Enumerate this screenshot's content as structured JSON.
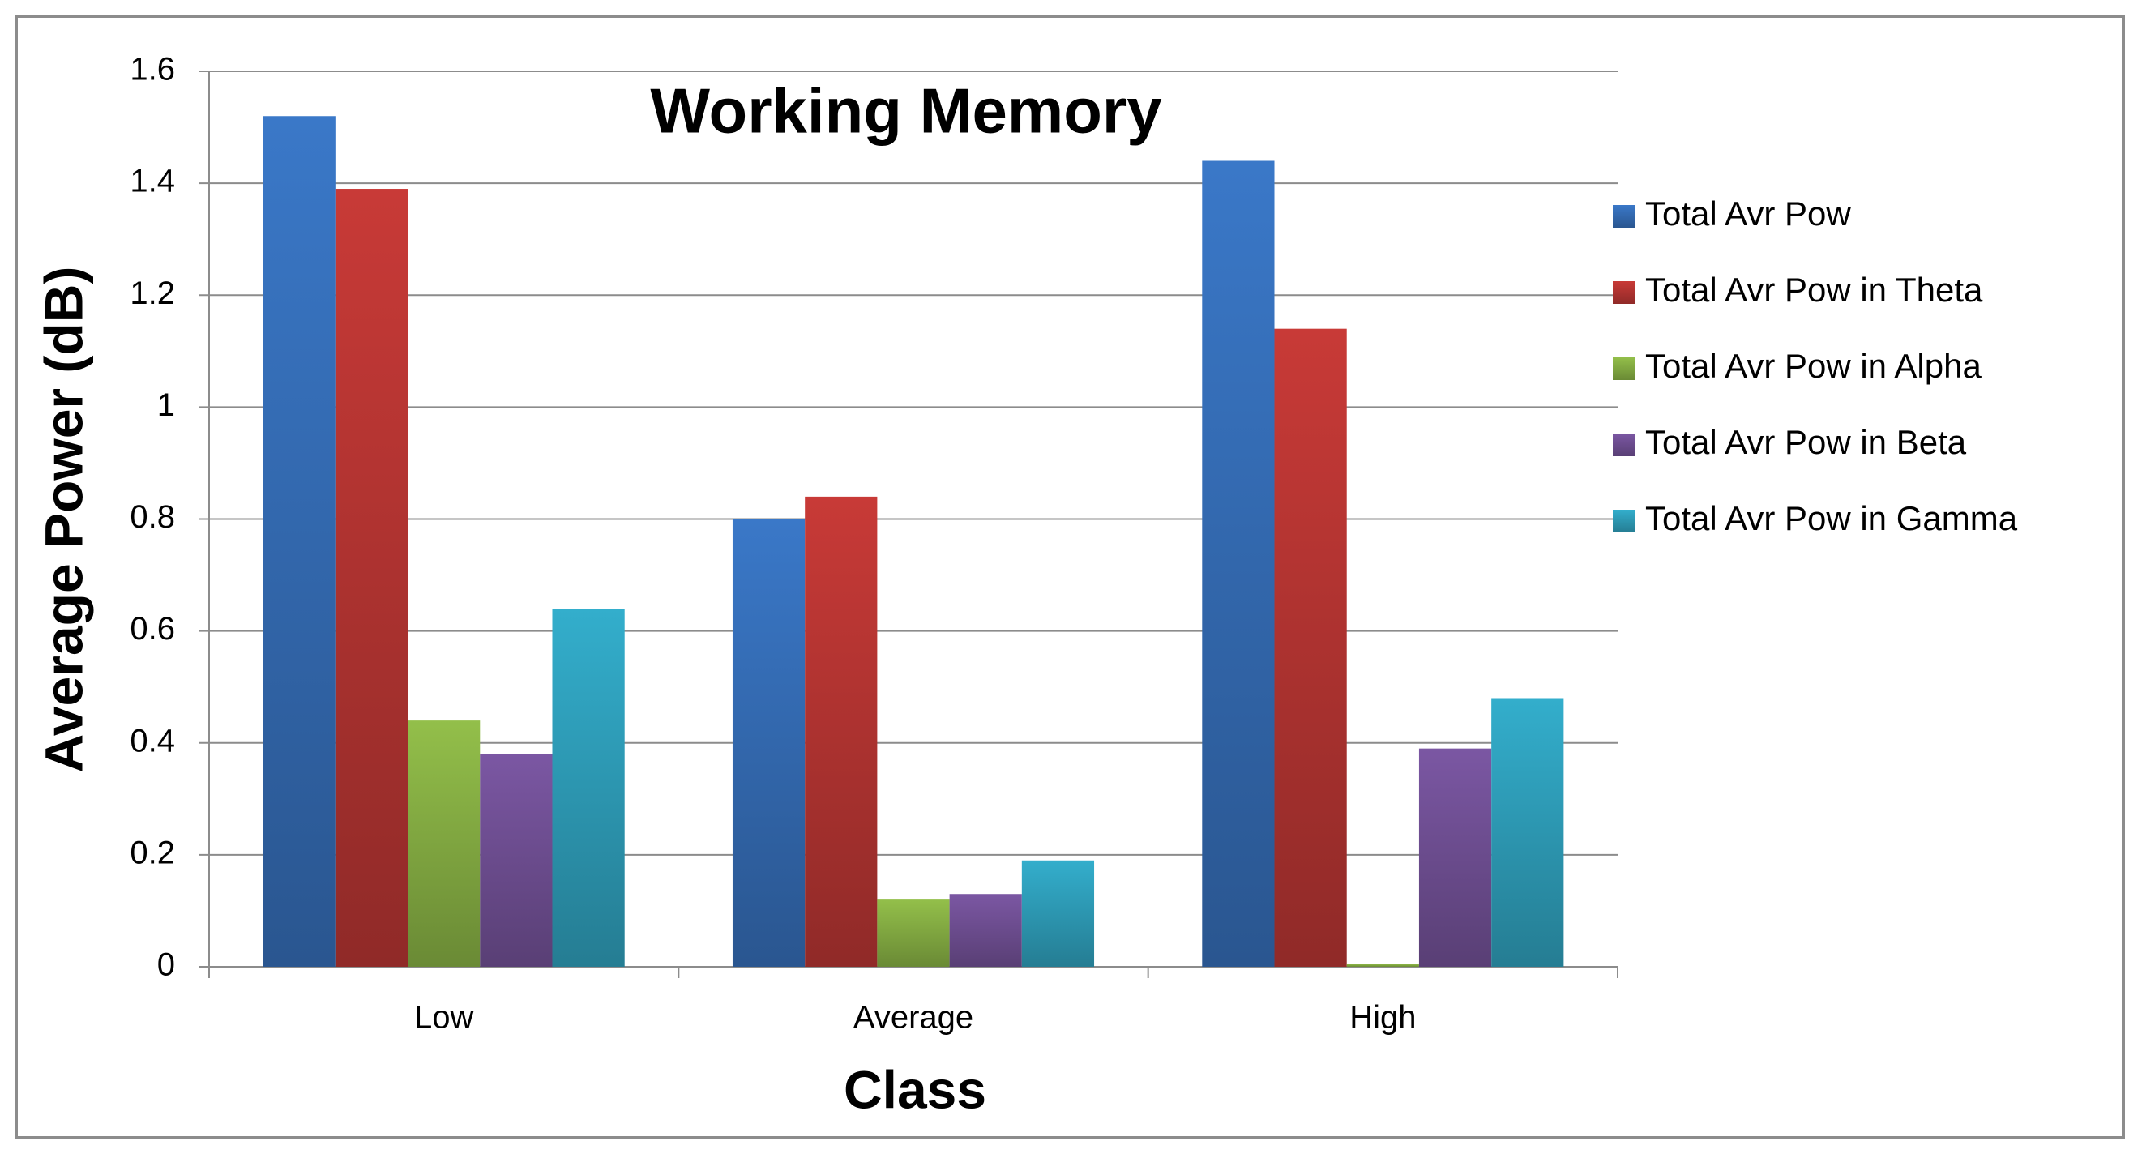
{
  "chart_data": {
    "type": "bar",
    "title": "Working Memory",
    "x_label": "Class",
    "y_label": "Average Power (dB)",
    "categories": [
      "Low",
      "Average",
      "High"
    ],
    "series": [
      {
        "name": "Total Avr Pow",
        "color": "#3a78c8",
        "values": [
          1.52,
          0.8,
          1.44
        ]
      },
      {
        "name": "Total Avr Pow in Theta",
        "color": "#c83a37",
        "values": [
          1.39,
          0.84,
          1.14
        ]
      },
      {
        "name": "Total Avr Pow in Alpha",
        "color": "#93bf4a",
        "values": [
          0.44,
          0.12,
          0.005
        ]
      },
      {
        "name": "Total Avr Pow in Beta",
        "color": "#7b57a3",
        "values": [
          0.38,
          0.13,
          0.39
        ]
      },
      {
        "name": "Total Avr Pow in Gamma",
        "color": "#33aecc",
        "values": [
          0.64,
          0.19,
          0.48
        ]
      }
    ],
    "ylim": [
      0,
      1.6
    ],
    "yticks": [
      0,
      0.2,
      0.4,
      0.6,
      0.8,
      1,
      1.2,
      1.4,
      1.6
    ],
    "grid": true,
    "legend": "right"
  }
}
